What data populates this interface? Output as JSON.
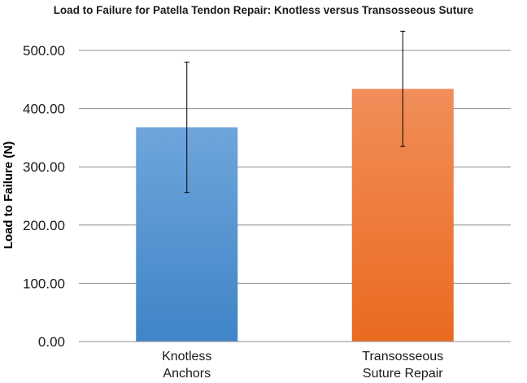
{
  "chart_data": {
    "type": "bar",
    "title": "Load to Failure for Patella Tendon Repair: Knotless versus Transosseous Suture",
    "xlabel": "",
    "ylabel": "Load to Failure (N)",
    "categories": [
      [
        "Knotless",
        "Anchors"
      ],
      [
        "Transosseous",
        "Suture Repair"
      ]
    ],
    "values": [
      368,
      434
    ],
    "error_bars": [
      {
        "low": 256,
        "high": 480
      },
      {
        "low": 335,
        "high": 533
      }
    ],
    "ylim": [
      0,
      540
    ],
    "yticks": [
      0,
      100,
      200,
      300,
      400,
      500
    ],
    "ytick_labels": [
      "0.00",
      "100.00",
      "200.00",
      "300.00",
      "400.00",
      "500.00"
    ],
    "grid": true,
    "legend": "none",
    "colors": {
      "bar1_top": "#6fa5dc",
      "bar1_bottom": "#3f85c7",
      "bar2_top": "#f18e5a",
      "bar2_bottom": "#ea6a1f"
    }
  }
}
